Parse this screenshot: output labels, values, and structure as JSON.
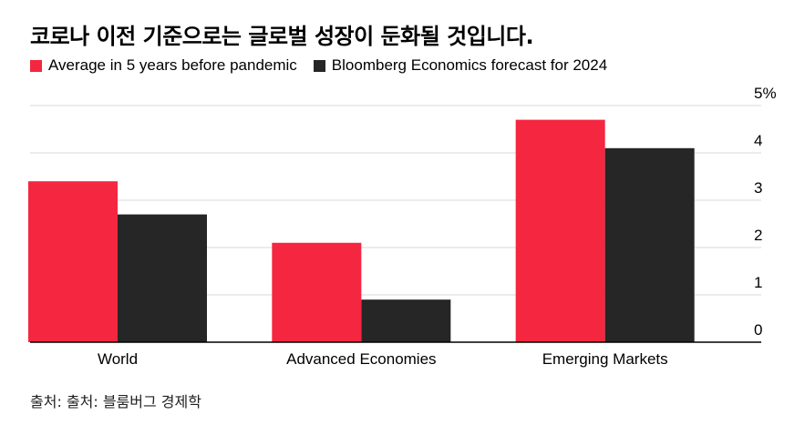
{
  "title": "코로나 이전 기준으로는 글로벌 성장이 둔화될 것입니다.",
  "source": "출처: 출처: 블룸버그 경제학",
  "colors": {
    "series1": "#f5263f",
    "series2": "#262626",
    "grid": "#d9d9d9",
    "axis": "#000000"
  },
  "chart_data": {
    "type": "bar",
    "title": "코로나 이전 기준으로는 글로벌 성장이 둔화될 것입니다.",
    "categories": [
      "World",
      "Advanced Economies",
      "Emerging Markets"
    ],
    "series": [
      {
        "name": "Average in 5 years before pandemic",
        "values": [
          3.4,
          2.1,
          4.7
        ]
      },
      {
        "name": "Bloomberg Economics forecast for 2024",
        "values": [
          2.7,
          0.9,
          4.1
        ]
      }
    ],
    "ylim": [
      0,
      5
    ],
    "yticks": [
      "0",
      "1",
      "2",
      "3",
      "4",
      "5%"
    ],
    "yaxis_position": "right",
    "grid": true,
    "legend_position": "top-left"
  }
}
